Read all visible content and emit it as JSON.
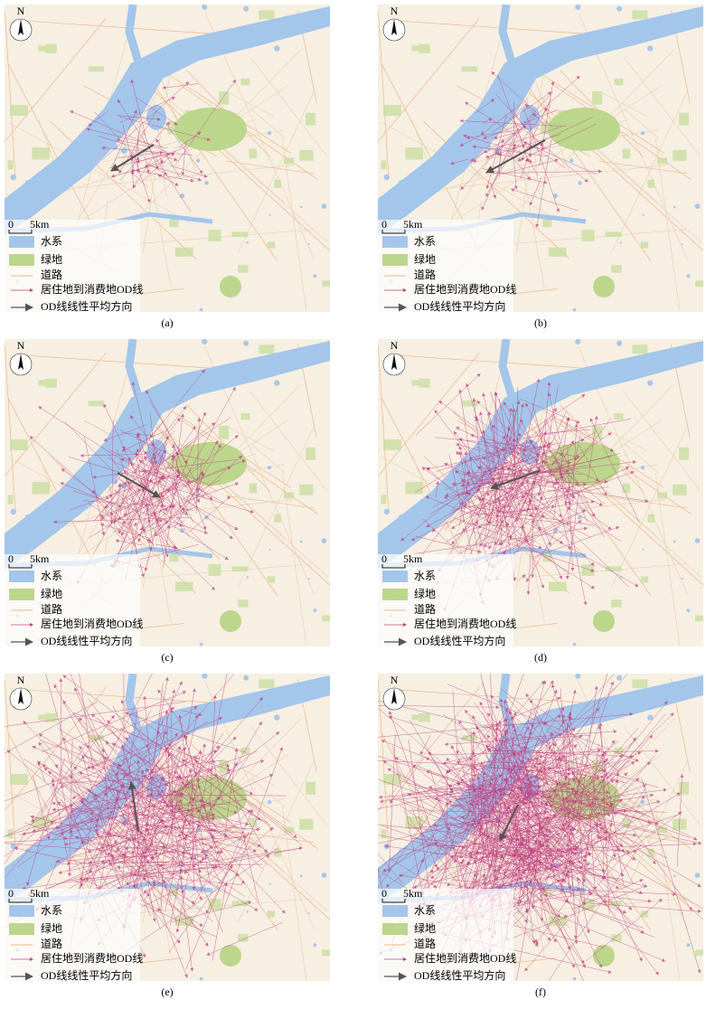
{
  "north": "N",
  "scale": {
    "zero": "0",
    "distance": "5km"
  },
  "legend": [
    "水系",
    "绿地",
    "道路",
    "居住地到消费地OD线",
    "OD线线性平均方向"
  ],
  "panels": [
    {
      "caption": "(a)"
    },
    {
      "caption": "(b)"
    },
    {
      "caption": "(c)"
    },
    {
      "caption": "(d)"
    },
    {
      "caption": "(e)"
    },
    {
      "caption": "(f)"
    }
  ]
}
